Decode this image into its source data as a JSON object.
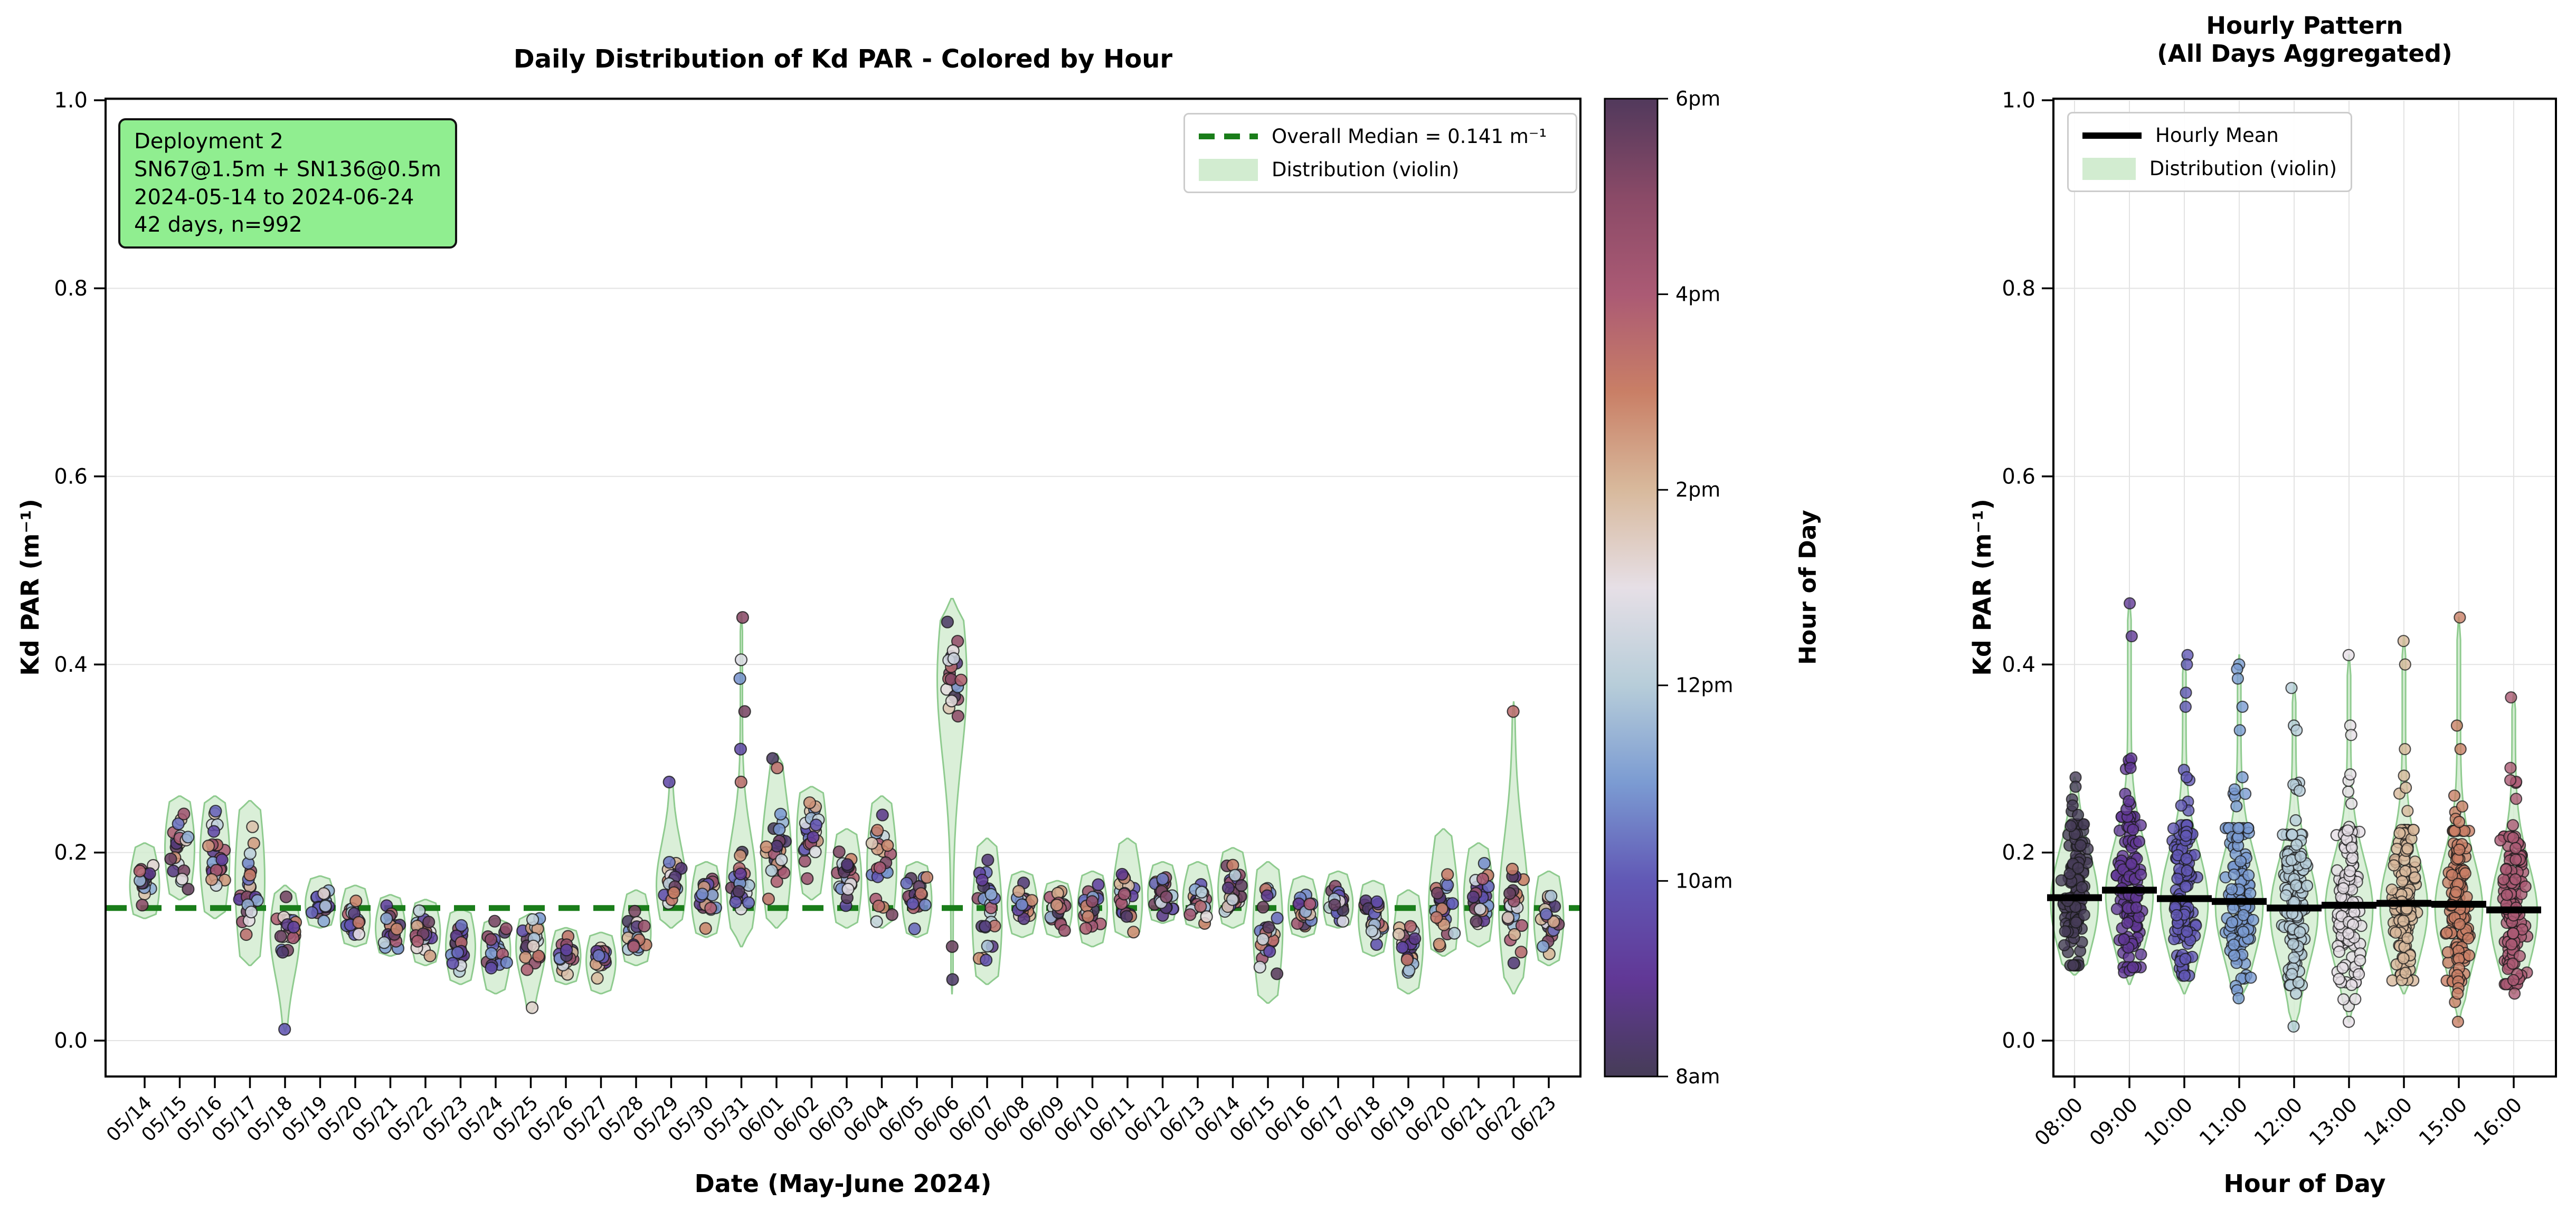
{
  "left_panel": {
    "title": "Daily Distribution of Kd PAR - Colored by Hour",
    "xlabel": "Date (May-June 2024)",
    "ylabel": "Kd PAR (m⁻¹)",
    "info_box": {
      "bg_color": "#90ee90",
      "lines": [
        "Deployment 2",
        "SN67@1.5m + SN136@0.5m",
        "2024-05-14 to 2024-06-24",
        "42 days, n=992"
      ]
    },
    "legend": {
      "median_label": "Overall Median = 0.141 m⁻¹",
      "violin_label": "Distribution (violin)"
    }
  },
  "right_panel": {
    "title_line1": "Hourly Pattern",
    "title_line2": "(All Days Aggregated)",
    "xlabel": "Hour of Day",
    "ylabel": "Kd PAR (m⁻¹)",
    "legend": {
      "mean_label": "Hourly Mean",
      "violin_label": "Distribution (violin)"
    }
  },
  "colorbar": {
    "label": "Hour of Day",
    "ticks": [
      {
        "label": "8am",
        "hour": 8
      },
      {
        "label": "10am",
        "hour": 10
      },
      {
        "label": "12pm",
        "hour": 12
      },
      {
        "label": "2pm",
        "hour": 14
      },
      {
        "label": "4pm",
        "hour": 16
      },
      {
        "label": "6pm",
        "hour": 18
      }
    ],
    "stops": [
      {
        "hour": 8,
        "color": "#463c57"
      },
      {
        "hour": 9,
        "color": "#613896"
      },
      {
        "hour": 10,
        "color": "#6158b5"
      },
      {
        "hour": 11,
        "color": "#7b9bd2"
      },
      {
        "hour": 12,
        "color": "#b7cdd9"
      },
      {
        "hour": 13,
        "color": "#e6dfe6"
      },
      {
        "hour": 14,
        "color": "#d8b99c"
      },
      {
        "hour": 15,
        "color": "#c97f66"
      },
      {
        "hour": 16,
        "color": "#ab5a74"
      },
      {
        "hour": 17,
        "color": "#8a4a67"
      },
      {
        "hour": 18,
        "color": "#51395c"
      }
    ]
  },
  "style": {
    "violin_fill": "#d2ecd0",
    "violin_edge": "#8fcb8f",
    "median_line_color": "#1a7d1a",
    "mean_bar_color": "#000000",
    "grid_color": "#e3e3e3",
    "spine_color": "#000000",
    "point_edge": "#1a1a1a"
  },
  "chart_data": [
    {
      "type": "violin",
      "panel": "left",
      "title": "Daily Distribution of Kd PAR - Colored by Hour",
      "xlabel": "Date (May-June 2024)",
      "ylabel": "Kd PAR (m⁻¹)",
      "ylim": [
        0.0,
        1.0
      ],
      "yticks": [
        0.0,
        0.2,
        0.4,
        0.6,
        0.8,
        1.0
      ],
      "ytick_labels": [
        "0.0",
        "0.2",
        "0.4",
        "0.6",
        "0.8",
        "1.0"
      ],
      "grid": "horizontal",
      "legend_position": "upper right",
      "overall_median": 0.141,
      "n_total": 992,
      "color_encoding": "hour of day 8am-6pm (twilight colormap)",
      "days": [
        {
          "date": "05/14",
          "med": 0.165,
          "lo": 0.13,
          "hi": 0.21,
          "n": 18
        },
        {
          "date": "05/15",
          "med": 0.205,
          "lo": 0.15,
          "hi": 0.26,
          "n": 22
        },
        {
          "date": "05/16",
          "med": 0.195,
          "lo": 0.13,
          "hi": 0.26,
          "n": 24
        },
        {
          "date": "05/17",
          "med": 0.17,
          "lo": 0.08,
          "hi": 0.255,
          "n": 26
        },
        {
          "date": "05/18",
          "med": 0.115,
          "lo": 0.01,
          "hi": 0.165,
          "core_lo": 0.07,
          "n": 22,
          "out_lo": [
            0.012
          ]
        },
        {
          "date": "05/19",
          "med": 0.145,
          "lo": 0.12,
          "hi": 0.175,
          "n": 18
        },
        {
          "date": "05/20",
          "med": 0.13,
          "lo": 0.1,
          "hi": 0.165,
          "n": 20
        },
        {
          "date": "05/21",
          "med": 0.12,
          "lo": 0.09,
          "hi": 0.155,
          "n": 20
        },
        {
          "date": "05/22",
          "med": 0.115,
          "lo": 0.08,
          "hi": 0.15,
          "n": 22
        },
        {
          "date": "05/23",
          "med": 0.1,
          "lo": 0.06,
          "hi": 0.14,
          "n": 22
        },
        {
          "date": "05/24",
          "med": 0.095,
          "lo": 0.05,
          "hi": 0.13,
          "n": 20
        },
        {
          "date": "05/25",
          "med": 0.1,
          "lo": 0.03,
          "hi": 0.135,
          "core_lo": 0.06,
          "n": 20,
          "out_lo": [
            0.035
          ]
        },
        {
          "date": "05/26",
          "med": 0.09,
          "lo": 0.06,
          "hi": 0.12,
          "n": 18
        },
        {
          "date": "05/27",
          "med": 0.085,
          "lo": 0.05,
          "hi": 0.115,
          "n": 18
        },
        {
          "date": "05/28",
          "med": 0.115,
          "lo": 0.08,
          "hi": 0.16,
          "n": 20
        },
        {
          "date": "05/29",
          "med": 0.165,
          "lo": 0.12,
          "hi": 0.28,
          "core_hi": 0.21,
          "n": 22,
          "out_hi": [
            0.275
          ]
        },
        {
          "date": "05/30",
          "med": 0.15,
          "lo": 0.11,
          "hi": 0.19,
          "n": 22
        },
        {
          "date": "05/31",
          "med": 0.165,
          "lo": 0.1,
          "hi": 0.455,
          "core_hi": 0.21,
          "n": 24,
          "out_hi": [
            0.45,
            0.405,
            0.385,
            0.35,
            0.31,
            0.275
          ]
        },
        {
          "date": "06/01",
          "med": 0.195,
          "lo": 0.12,
          "hi": 0.305,
          "core_hi": 0.26,
          "n": 24,
          "out_hi": [
            0.3,
            0.29
          ]
        },
        {
          "date": "06/02",
          "med": 0.22,
          "lo": 0.15,
          "hi": 0.27,
          "n": 24
        },
        {
          "date": "06/03",
          "med": 0.17,
          "lo": 0.12,
          "hi": 0.225,
          "n": 24
        },
        {
          "date": "06/04",
          "med": 0.185,
          "lo": 0.12,
          "hi": 0.26,
          "n": 24
        },
        {
          "date": "06/05",
          "med": 0.15,
          "lo": 0.11,
          "hi": 0.19,
          "n": 22
        },
        {
          "date": "06/06",
          "med": 0.385,
          "lo": 0.05,
          "hi": 0.47,
          "core_lo": 0.3,
          "n": 20,
          "out_lo": [
            0.1,
            0.065
          ]
        },
        {
          "date": "06/07",
          "med": 0.13,
          "lo": 0.06,
          "hi": 0.215,
          "n": 24
        },
        {
          "date": "06/08",
          "med": 0.145,
          "lo": 0.11,
          "hi": 0.18,
          "n": 22
        },
        {
          "date": "06/09",
          "med": 0.14,
          "lo": 0.11,
          "hi": 0.17,
          "n": 20
        },
        {
          "date": "06/10",
          "med": 0.14,
          "lo": 0.1,
          "hi": 0.18,
          "n": 22
        },
        {
          "date": "06/11",
          "med": 0.15,
          "lo": 0.11,
          "hi": 0.215,
          "n": 24
        },
        {
          "date": "06/12",
          "med": 0.155,
          "lo": 0.125,
          "hi": 0.19,
          "n": 22
        },
        {
          "date": "06/13",
          "med": 0.15,
          "lo": 0.12,
          "hi": 0.19,
          "n": 22
        },
        {
          "date": "06/14",
          "med": 0.16,
          "lo": 0.12,
          "hi": 0.205,
          "n": 24
        },
        {
          "date": "06/15",
          "med": 0.12,
          "lo": 0.04,
          "hi": 0.19,
          "n": 24
        },
        {
          "date": "06/16",
          "med": 0.14,
          "lo": 0.11,
          "hi": 0.175,
          "n": 22
        },
        {
          "date": "06/17",
          "med": 0.145,
          "lo": 0.12,
          "hi": 0.18,
          "n": 22
        },
        {
          "date": "06/18",
          "med": 0.13,
          "lo": 0.09,
          "hi": 0.17,
          "n": 24
        },
        {
          "date": "06/19",
          "med": 0.105,
          "lo": 0.05,
          "hi": 0.16,
          "n": 24
        },
        {
          "date": "06/20",
          "med": 0.14,
          "lo": 0.09,
          "hi": 0.225,
          "n": 24
        },
        {
          "date": "06/21",
          "med": 0.15,
          "lo": 0.1,
          "hi": 0.21,
          "n": 24
        },
        {
          "date": "06/22",
          "med": 0.14,
          "lo": 0.05,
          "hi": 0.36,
          "core_hi": 0.2,
          "n": 24,
          "out_hi": [
            0.35
          ]
        },
        {
          "date": "06/23",
          "med": 0.13,
          "lo": 0.08,
          "hi": 0.18,
          "n": 22
        }
      ]
    },
    {
      "type": "violin",
      "panel": "right",
      "title": "Hourly Pattern (All Days Aggregated)",
      "xlabel": "Hour of Day",
      "ylabel": "Kd PAR (m⁻¹)",
      "ylim": [
        0.0,
        1.0
      ],
      "yticks": [
        0.0,
        0.2,
        0.4,
        0.6,
        0.8,
        1.0
      ],
      "ytick_labels": [
        "0.0",
        "0.2",
        "0.4",
        "0.6",
        "0.8",
        "1.0"
      ],
      "grid": "both",
      "legend_position": "upper left",
      "hours": [
        {
          "label": "08:00",
          "mean": 0.152,
          "lo": 0.07,
          "hi": 0.28,
          "color": "#463c57",
          "n": 104,
          "out_hi": [
            0.27,
            0.25,
            0.24
          ],
          "out_lo": []
        },
        {
          "label": "09:00",
          "mean": 0.16,
          "lo": 0.06,
          "hi": 0.47,
          "color": "#613896",
          "n": 110,
          "out_hi": [
            0.465,
            0.43,
            0.3,
            0.29
          ],
          "out_lo": []
        },
        {
          "label": "10:00",
          "mean": 0.151,
          "lo": 0.05,
          "hi": 0.41,
          "color": "#6158b5",
          "n": 112,
          "out_hi": [
            0.41,
            0.4,
            0.37,
            0.355,
            0.25
          ],
          "out_lo": []
        },
        {
          "label": "11:00",
          "mean": 0.148,
          "lo": 0.04,
          "hi": 0.41,
          "color": "#7b9bd2",
          "n": 112,
          "out_hi": [
            0.4,
            0.395,
            0.385,
            0.355,
            0.33
          ],
          "out_lo": [
            0.045
          ]
        },
        {
          "label": "12:00",
          "mean": 0.141,
          "lo": 0.01,
          "hi": 0.38,
          "color": "#b7cdd9",
          "n": 112,
          "out_hi": [
            0.375,
            0.335,
            0.33
          ],
          "out_lo": [
            0.015,
            0.05
          ]
        },
        {
          "label": "13:00",
          "mean": 0.144,
          "lo": 0.02,
          "hi": 0.41,
          "color": "#e6dfe6",
          "n": 110,
          "out_hi": [
            0.41,
            0.335,
            0.325
          ],
          "out_lo": [
            0.02
          ]
        },
        {
          "label": "14:00",
          "mean": 0.146,
          "lo": 0.05,
          "hi": 0.43,
          "color": "#d8b99c",
          "n": 110,
          "out_hi": [
            0.425,
            0.4,
            0.31
          ],
          "out_lo": []
        },
        {
          "label": "15:00",
          "mean": 0.145,
          "lo": 0.02,
          "hi": 0.45,
          "color": "#c97f66",
          "n": 112,
          "out_hi": [
            0.45,
            0.335,
            0.31
          ],
          "out_lo": [
            0.02,
            0.05
          ]
        },
        {
          "label": "16:00",
          "mean": 0.139,
          "lo": 0.05,
          "hi": 0.37,
          "color": "#ab5a74",
          "n": 110,
          "out_hi": [
            0.365,
            0.29
          ],
          "out_lo": [
            0.05
          ]
        }
      ]
    }
  ]
}
